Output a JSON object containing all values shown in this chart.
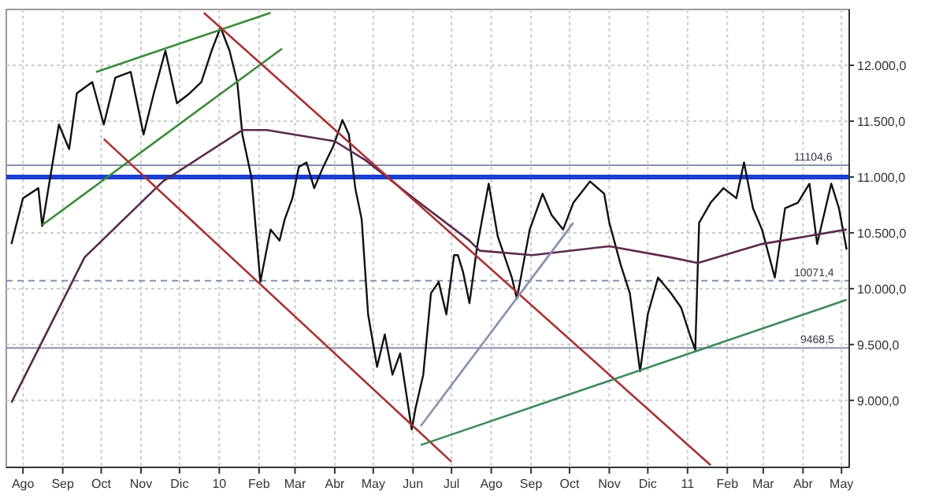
{
  "chart_data": {
    "type": "line",
    "xlim": [
      "2009-07-19",
      "2011-05-07"
    ],
    "ylim": [
      8400,
      12500
    ],
    "xticks": [
      {
        "value": "2009-08-01",
        "label": "Ago"
      },
      {
        "value": "2009-09-01",
        "label": "Sep"
      },
      {
        "value": "2009-10-01",
        "label": "Oct"
      },
      {
        "value": "2009-11-01",
        "label": "Nov"
      },
      {
        "value": "2009-12-01",
        "label": "Dic"
      },
      {
        "value": "2010-01-01",
        "label": "10"
      },
      {
        "value": "2010-02-01",
        "label": "Feb"
      },
      {
        "value": "2010-03-01",
        "label": "Mar"
      },
      {
        "value": "2010-04-01",
        "label": "Abr"
      },
      {
        "value": "2010-05-01",
        "label": "May"
      },
      {
        "value": "2010-06-01",
        "label": "Jun"
      },
      {
        "value": "2010-07-01",
        "label": "Jul"
      },
      {
        "value": "2010-08-01",
        "label": "Ago"
      },
      {
        "value": "2010-09-01",
        "label": "Sep"
      },
      {
        "value": "2010-10-01",
        "label": "Oct"
      },
      {
        "value": "2010-11-01",
        "label": "Nov"
      },
      {
        "value": "2010-12-01",
        "label": "Dic"
      },
      {
        "value": "2011-01-01",
        "label": "11"
      },
      {
        "value": "2011-02-01",
        "label": "Feb"
      },
      {
        "value": "2011-03-01",
        "label": "Mar"
      },
      {
        "value": "2011-04-01",
        "label": "Abr"
      },
      {
        "value": "2011-05-01",
        "label": "May"
      }
    ],
    "yticks": [
      {
        "value": 9000,
        "label": "9.000,0"
      },
      {
        "value": 9500,
        "label": "9.500,0"
      },
      {
        "value": 10000,
        "label": "10.000,0"
      },
      {
        "value": 10500,
        "label": "10.500,0"
      },
      {
        "value": 11000,
        "label": "11.000,0"
      },
      {
        "value": 11500,
        "label": "11.500,0"
      },
      {
        "value": 12000,
        "label": "12.000,0"
      }
    ],
    "grid": true,
    "series": [
      {
        "color": "#111111",
        "x": [
          "2009-07-23",
          "2009-08-01",
          "2009-08-13",
          "2009-08-16",
          "2009-08-25",
          "2009-08-29",
          "2009-09-06",
          "2009-09-12",
          "2009-09-24",
          "2009-10-03",
          "2009-10-12",
          "2009-10-24",
          "2009-11-03",
          "2009-11-11",
          "2009-11-20",
          "2009-11-29",
          "2009-12-09",
          "2009-12-18",
          "2009-12-26",
          "2010-01-02",
          "2010-01-09",
          "2010-01-15",
          "2010-01-19",
          "2010-01-26",
          "2010-02-02",
          "2010-02-10",
          "2010-02-17",
          "2010-02-21",
          "2010-02-27",
          "2010-03-04",
          "2010-03-10",
          "2010-03-16",
          "2010-03-23",
          "2010-03-31",
          "2010-04-07",
          "2010-04-12",
          "2010-04-17",
          "2010-04-22",
          "2010-04-27",
          "2010-05-04",
          "2010-05-10",
          "2010-05-16",
          "2010-05-22",
          "2010-05-31",
          "2010-06-03",
          "2010-06-09",
          "2010-06-15",
          "2010-06-21",
          "2010-06-27",
          "2010-07-03",
          "2010-07-06",
          "2010-07-10",
          "2010-07-15",
          "2010-07-21",
          "2010-07-30",
          "2010-08-06",
          "2010-08-17",
          "2010-08-21",
          "2010-08-31",
          "2010-09-10",
          "2010-09-17",
          "2010-09-26",
          "2010-10-04",
          "2010-10-17",
          "2010-10-28",
          "2010-11-01",
          "2010-11-10",
          "2010-11-17",
          "2010-11-25",
          "2010-12-01",
          "2010-12-09",
          "2010-12-19",
          "2010-12-27",
          "2011-01-03",
          "2011-01-07",
          "2011-01-10",
          "2011-01-19",
          "2011-01-29",
          "2011-02-08",
          "2011-02-14",
          "2011-02-21",
          "2011-02-28",
          "2011-03-10",
          "2011-03-18",
          "2011-03-28",
          "2011-04-06",
          "2011-04-12",
          "2011-04-23",
          "2011-04-29",
          "2011-05-05"
        ],
        "values": [
          10400,
          10810,
          10900,
          10560,
          11190,
          11470,
          11250,
          11750,
          11850,
          11470,
          11890,
          11940,
          11380,
          11750,
          12130,
          11660,
          11750,
          11850,
          12130,
          12340,
          12130,
          11850,
          11380,
          11000,
          10060,
          10530,
          10430,
          10620,
          10810,
          11090,
          11130,
          10900,
          11090,
          11280,
          11510,
          11380,
          10900,
          10620,
          9770,
          9300,
          9590,
          9230,
          9420,
          8740,
          8930,
          9230,
          9960,
          10060,
          9770,
          10300,
          10300,
          10150,
          9870,
          10380,
          10940,
          10470,
          10100,
          9910,
          10530,
          10850,
          10660,
          10530,
          10770,
          10960,
          10850,
          10590,
          10210,
          9960,
          9260,
          9770,
          10100,
          9960,
          9830,
          9580,
          9450,
          10590,
          10770,
          10900,
          10810,
          11130,
          10720,
          10530,
          10100,
          10720,
          10770,
          10940,
          10400,
          10940,
          10720,
          10350
        ]
      },
      {
        "color": "#5a2a4a",
        "x": [
          "2009-07-23",
          "2009-09-18",
          "2009-11-18",
          "2010-01-19",
          "2010-02-07",
          "2010-04-01",
          "2010-04-25",
          "2010-06-06",
          "2010-07-15",
          "2010-07-23",
          "2010-09-02",
          "2010-11-01",
          "2010-12-19",
          "2011-01-09",
          "2011-02-28",
          "2011-05-05"
        ],
        "values": [
          8980,
          10280,
          10960,
          11420,
          11420,
          11320,
          11150,
          10770,
          10430,
          10340,
          10300,
          10380,
          10280,
          10230,
          10400,
          10530
        ]
      },
      {
        "color": "#3c8a3c",
        "x": [
          "2009-09-27",
          "2010-02-10"
        ],
        "values": [
          11940,
          12470
        ]
      },
      {
        "color": "#3c8a3c",
        "x": [
          "2009-08-16",
          "2010-02-19"
        ],
        "values": [
          10570,
          12150
        ]
      },
      {
        "color": "#a83232",
        "x": [
          "2009-12-20",
          "2011-01-19"
        ],
        "values": [
          12470,
          8420
        ]
      },
      {
        "color": "#a83232",
        "x": [
          "2009-10-03",
          "2010-07-01"
        ],
        "values": [
          11340,
          8450
        ]
      },
      {
        "color": "#3c8a5a",
        "x": [
          "2010-06-07",
          "2011-05-05"
        ],
        "values": [
          8600,
          9900
        ]
      },
      {
        "color": "#8890b0",
        "x": [
          "2010-06-07",
          "2010-10-04"
        ],
        "values": [
          8770,
          10590
        ]
      }
    ],
    "ref_lines": [
      {
        "axis": "y",
        "value": 11000,
        "color": "#1a3fd1"
      },
      {
        "axis": "y",
        "value": 11104.6,
        "label": "11104,6",
        "color": "#8890b0"
      },
      {
        "axis": "y",
        "value": 10071.4,
        "label": "10071,4",
        "color": "#8890b0",
        "line_style": "dashed"
      },
      {
        "axis": "y",
        "value": 9468.5,
        "label": "9468,5",
        "color": "#8890b0"
      }
    ]
  }
}
